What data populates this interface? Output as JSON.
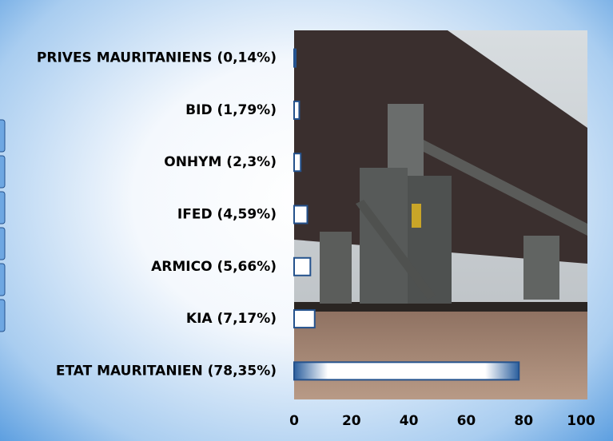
{
  "chart_data": {
    "type": "hbar",
    "categories": [
      "PRIVES MAURITANIENS (0,14%)",
      "BID (1,79%)",
      "ONHYM (2,3%)",
      "IFED (4,59%)",
      "ARMICO (5,66%)",
      "KIA (7,17%)",
      "ETAT MAURITANIEN (78,35%)"
    ],
    "values": [
      0.14,
      1.79,
      2.3,
      4.59,
      5.66,
      7.17,
      78.35
    ],
    "color": "#ffffff",
    "xlim": [
      0,
      100
    ],
    "xticks": [
      0,
      20,
      40,
      60,
      80,
      100
    ]
  }
}
